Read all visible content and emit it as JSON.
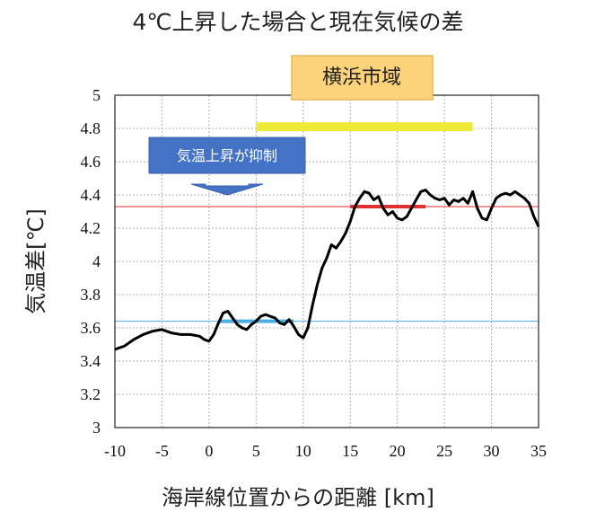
{
  "title": "4℃上昇した場合と現在気候の差",
  "region_label": "横浜市域",
  "callout_label": "気温上昇が抑制",
  "colors": {
    "line": "#000000",
    "grid": "#b0b0b0",
    "red_ref": "#e03030",
    "blue_ref": "#4aaee0",
    "yellow_bar": "#eeea3a",
    "region_box_fill": "#fcd27a",
    "region_box_stroke": "#e8b85a",
    "callout_fill": "#4472c4"
  },
  "chart_data": {
    "type": "line",
    "title": "4℃上昇した場合と現在気候の差",
    "xlabel": "海岸線位置からの距離 [km]",
    "ylabel": "気温差[℃]",
    "xlim": [
      -10,
      35
    ],
    "ylim": [
      3,
      5
    ],
    "xticks": [
      -10,
      -5,
      0,
      5,
      10,
      15,
      20,
      25,
      30,
      35
    ],
    "yticks": [
      3,
      3.2,
      3.4,
      3.6,
      3.8,
      4,
      4.2,
      4.4,
      4.6,
      4.8,
      5
    ],
    "ytick_labels": [
      "3",
      "3.2",
      "3.4",
      "3.6",
      "3.8",
      "4",
      "4.2",
      "4.4",
      "4.6",
      "4.8",
      "5"
    ],
    "grid": true,
    "series": [
      {
        "points": [
          [
            -10,
            3.47
          ],
          [
            -9,
            3.49
          ],
          [
            -8,
            3.53
          ],
          [
            -7,
            3.56
          ],
          [
            -6,
            3.58
          ],
          [
            -5,
            3.59
          ],
          [
            -4,
            3.57
          ],
          [
            -3,
            3.56
          ],
          [
            -2,
            3.56
          ],
          [
            -1,
            3.55
          ],
          [
            -0.5,
            3.53
          ],
          [
            0,
            3.52
          ],
          [
            0.5,
            3.56
          ],
          [
            1,
            3.63
          ],
          [
            1.5,
            3.69
          ],
          [
            2,
            3.7
          ],
          [
            2.5,
            3.66
          ],
          [
            3,
            3.62
          ],
          [
            3.5,
            3.6
          ],
          [
            4,
            3.59
          ],
          [
            4.5,
            3.62
          ],
          [
            5,
            3.64
          ],
          [
            5.5,
            3.67
          ],
          [
            6,
            3.68
          ],
          [
            6.5,
            3.67
          ],
          [
            7,
            3.66
          ],
          [
            7.5,
            3.63
          ],
          [
            8,
            3.62
          ],
          [
            8.5,
            3.65
          ],
          [
            9,
            3.61
          ],
          [
            9.5,
            3.56
          ],
          [
            10,
            3.54
          ],
          [
            10.5,
            3.6
          ],
          [
            11,
            3.74
          ],
          [
            11.5,
            3.86
          ],
          [
            12,
            3.96
          ],
          [
            12.5,
            4.02
          ],
          [
            13,
            4.1
          ],
          [
            13.5,
            4.08
          ],
          [
            14,
            4.12
          ],
          [
            14.5,
            4.17
          ],
          [
            15,
            4.24
          ],
          [
            15.5,
            4.33
          ],
          [
            16,
            4.38
          ],
          [
            16.5,
            4.42
          ],
          [
            17,
            4.41
          ],
          [
            17.5,
            4.37
          ],
          [
            18,
            4.39
          ],
          [
            18.5,
            4.32
          ],
          [
            19,
            4.28
          ],
          [
            19.5,
            4.3
          ],
          [
            20,
            4.26
          ],
          [
            20.5,
            4.25
          ],
          [
            21,
            4.27
          ],
          [
            21.5,
            4.32
          ],
          [
            22,
            4.37
          ],
          [
            22.5,
            4.42
          ],
          [
            23,
            4.43
          ],
          [
            23.5,
            4.4
          ],
          [
            24,
            4.38
          ],
          [
            24.5,
            4.37
          ],
          [
            25,
            4.38
          ],
          [
            25.5,
            4.34
          ],
          [
            26,
            4.37
          ],
          [
            26.5,
            4.36
          ],
          [
            27,
            4.38
          ],
          [
            27.5,
            4.35
          ],
          [
            28,
            4.42
          ],
          [
            28.5,
            4.32
          ],
          [
            29,
            4.26
          ],
          [
            29.5,
            4.25
          ],
          [
            30,
            4.32
          ],
          [
            30.5,
            4.38
          ],
          [
            31,
            4.4
          ],
          [
            31.5,
            4.41
          ],
          [
            32,
            4.4
          ],
          [
            32.5,
            4.42
          ],
          [
            33,
            4.4
          ],
          [
            33.5,
            4.38
          ],
          [
            34,
            4.35
          ],
          [
            34.5,
            4.27
          ],
          [
            35,
            4.21
          ]
        ]
      }
    ],
    "reference_lines": [
      {
        "name": "red",
        "y": 4.33
      },
      {
        "name": "blue",
        "y": 3.64
      }
    ],
    "segments": [
      {
        "name": "red-mean-segment",
        "x": [
          15,
          23
        ],
        "y": 4.33
      },
      {
        "name": "blue-mean-segment",
        "x": [
          1,
          9
        ],
        "y": 3.64
      },
      {
        "name": "yellow-region-bar",
        "x": [
          5,
          28
        ],
        "y": 4.81
      }
    ]
  }
}
